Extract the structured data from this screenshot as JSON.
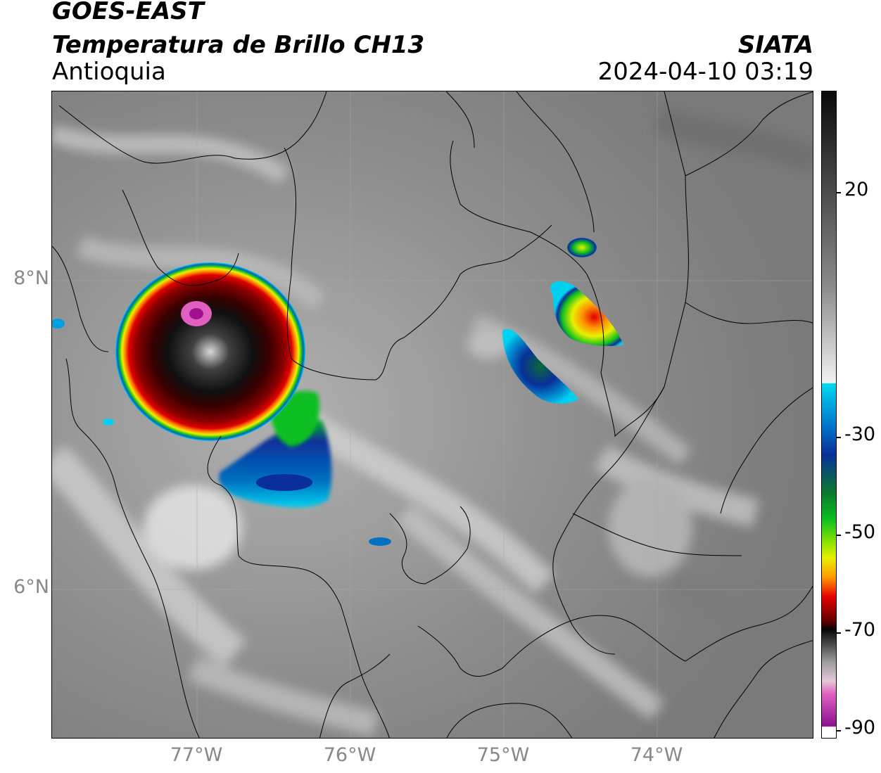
{
  "header": {
    "satellite": "GOES-EAST",
    "product": "Temperatura de Brillo CH13",
    "region": "Antioquia",
    "agency": "SIATA",
    "datetime": "2024-04-10 03:19"
  },
  "axes": {
    "lat_labels": [
      "8°N",
      "6°N"
    ],
    "lon_labels": [
      "77°W",
      "76°W",
      "75°W",
      "74°W"
    ]
  },
  "colorbar": {
    "ticks": [
      "20",
      "-30",
      "-50",
      "-70",
      "-90"
    ],
    "colors": {
      "top": "#0a0a0a",
      "warm_grey": "#6f6f6f",
      "light": "#f2f2f2",
      "cyan": "#00d9f0",
      "blue": "#0a2f9a",
      "green": "#0bbf20",
      "yellow": "#e6ef00",
      "orange": "#ff9a00",
      "red": "#e60000",
      "darkred": "#5a0000",
      "black": "#050505",
      "pink": "#e060c0",
      "purple": "#8a1090"
    }
  }
}
